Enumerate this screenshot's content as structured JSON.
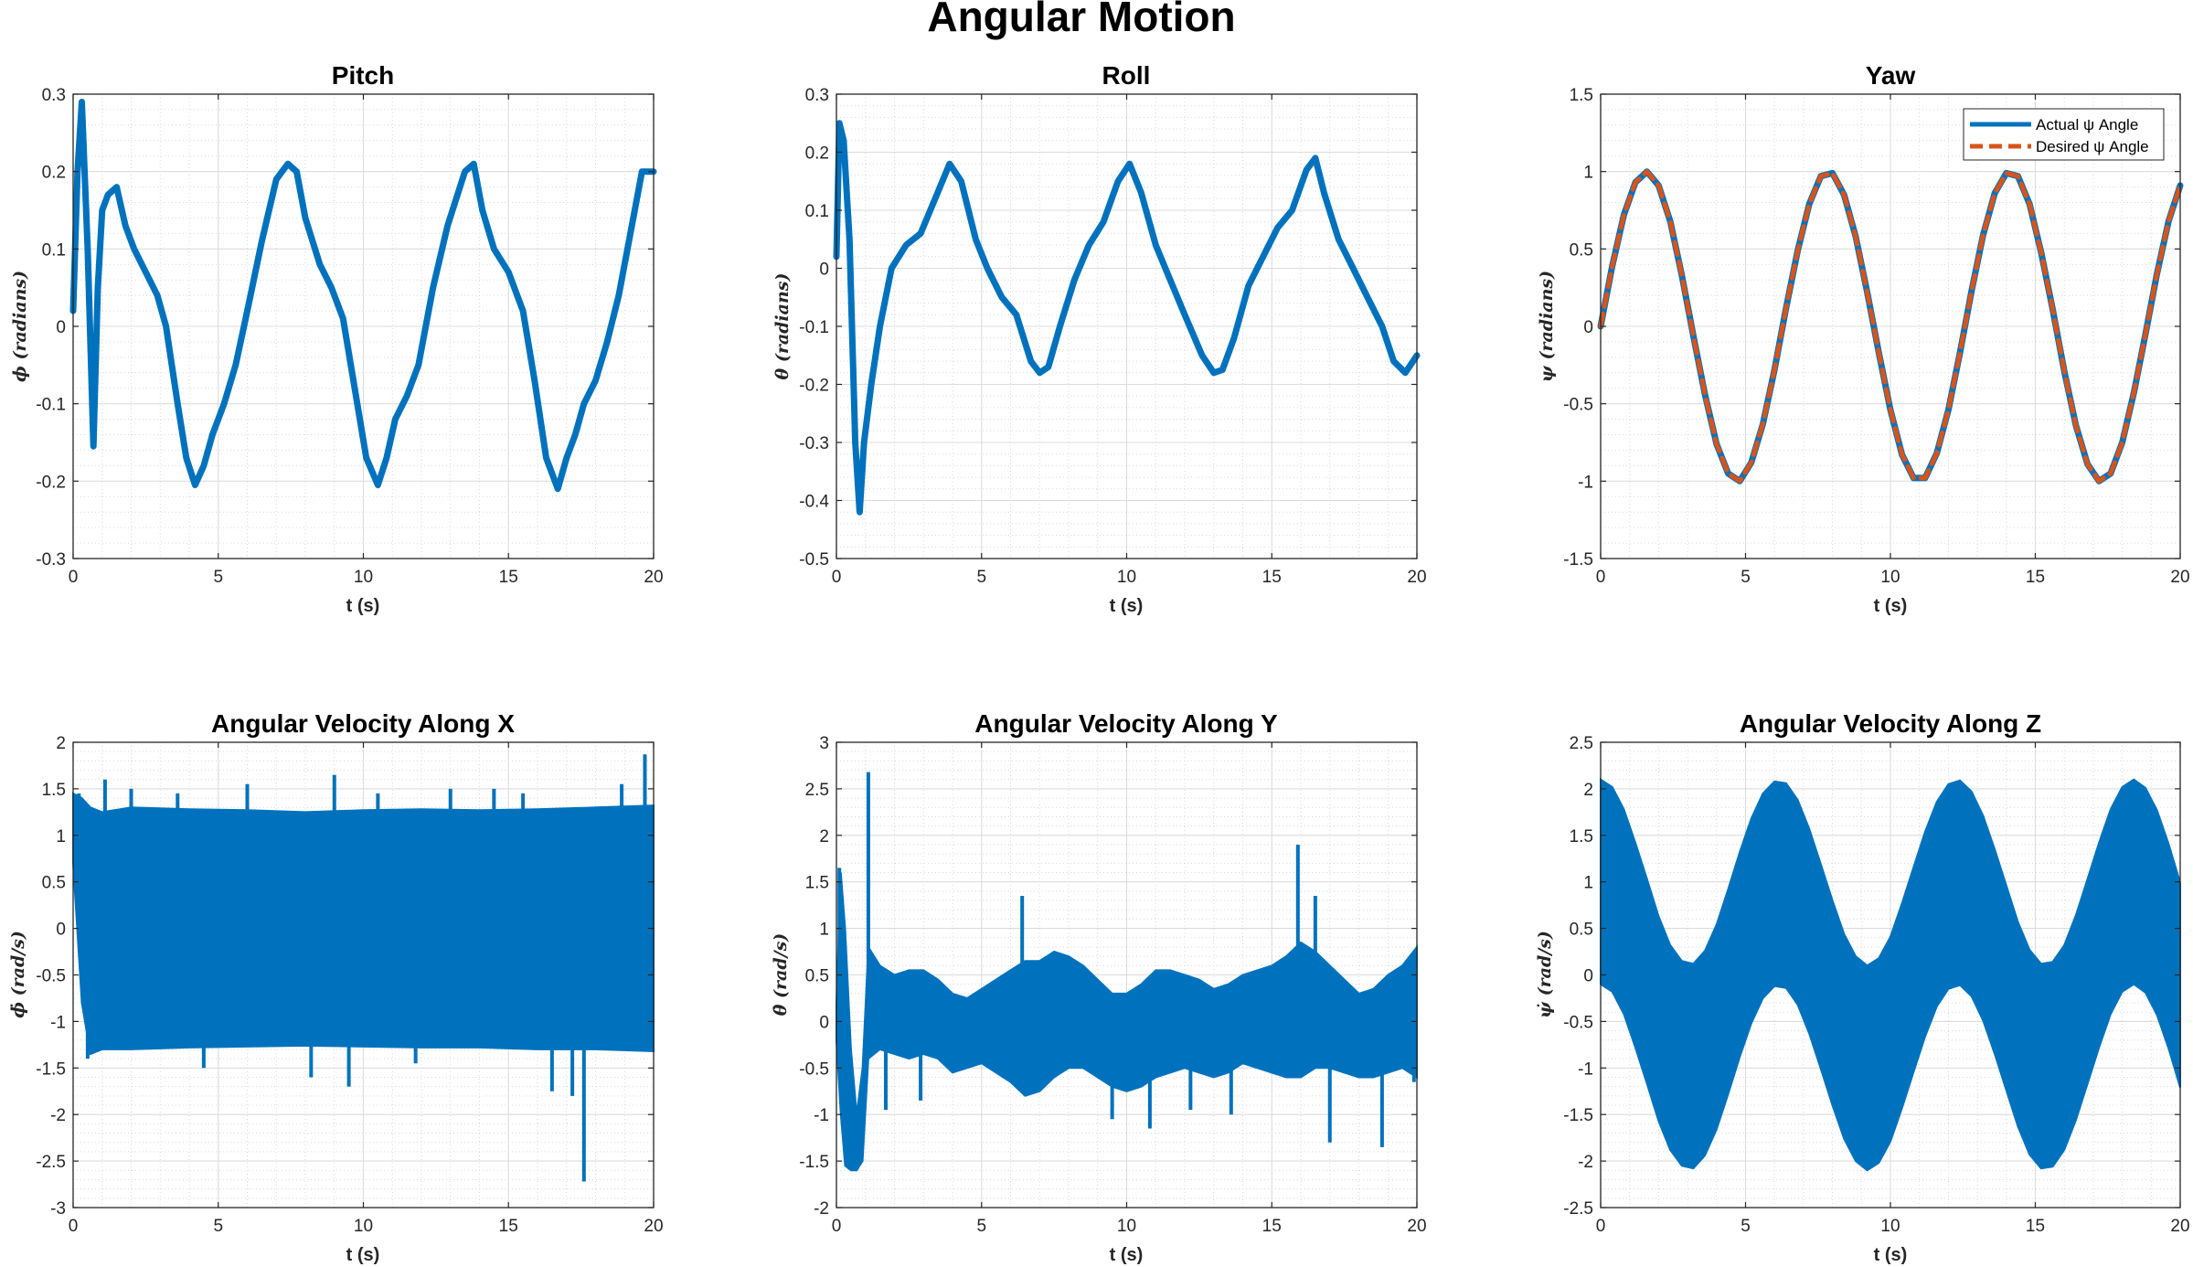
{
  "figure": {
    "title": "Angular Motion"
  },
  "chart_data": [
    {
      "type": "line",
      "title": "Pitch",
      "xlabel": "t (s)",
      "ylabel": "ϕ (radians)",
      "xlim": [
        0,
        20
      ],
      "ylim": [
        -0.3,
        0.3
      ],
      "xticks": [
        0,
        5,
        10,
        15,
        20
      ],
      "yticks": [
        -0.3,
        -0.2,
        -0.1,
        0,
        0.1,
        0.2,
        0.3
      ],
      "grid": true,
      "minor_grid": true,
      "series": [
        {
          "color": "#0072BD",
          "style": "solid",
          "x": [
            0,
            0.15,
            0.3,
            0.5,
            0.7,
            0.85,
            1.0,
            1.2,
            1.5,
            1.8,
            2.1,
            2.5,
            2.9,
            3.2,
            3.6,
            3.9,
            4.2,
            4.5,
            4.8,
            5.2,
            5.6,
            6.0,
            6.5,
            7.0,
            7.4,
            7.7,
            8.0,
            8.5,
            8.9,
            9.3,
            9.7,
            10.1,
            10.5,
            10.8,
            11.1,
            11.5,
            11.9,
            12.4,
            12.9,
            13.5,
            13.8,
            14.1,
            14.5,
            15.0,
            15.5,
            15.9,
            16.3,
            16.7,
            17.0,
            17.3,
            17.6,
            18.0,
            18.4,
            18.8,
            19.2,
            19.6,
            20.0
          ],
          "y": [
            0.02,
            0.2,
            0.29,
            0.1,
            -0.155,
            0.05,
            0.15,
            0.17,
            0.18,
            0.13,
            0.1,
            0.07,
            0.04,
            0.0,
            -0.1,
            -0.17,
            -0.205,
            -0.18,
            -0.14,
            -0.1,
            -0.05,
            0.02,
            0.11,
            0.19,
            0.21,
            0.2,
            0.14,
            0.08,
            0.05,
            0.01,
            -0.08,
            -0.17,
            -0.205,
            -0.17,
            -0.12,
            -0.09,
            -0.05,
            0.05,
            0.13,
            0.2,
            0.21,
            0.15,
            0.1,
            0.07,
            0.02,
            -0.07,
            -0.17,
            -0.21,
            -0.17,
            -0.14,
            -0.1,
            -0.07,
            -0.02,
            0.04,
            0.12,
            0.2,
            0.2
          ]
        }
      ]
    },
    {
      "type": "line",
      "title": "Roll",
      "xlabel": "t (s)",
      "ylabel": "θ (radians)",
      "xlim": [
        0,
        20
      ],
      "ylim": [
        -0.5,
        0.3
      ],
      "xticks": [
        0,
        5,
        10,
        15,
        20
      ],
      "yticks": [
        -0.5,
        -0.4,
        -0.3,
        -0.2,
        -0.1,
        0,
        0.1,
        0.2,
        0.3
      ],
      "grid": true,
      "minor_grid": true,
      "series": [
        {
          "color": "#0072BD",
          "style": "solid",
          "x": [
            0,
            0.1,
            0.25,
            0.45,
            0.65,
            0.8,
            0.95,
            1.2,
            1.5,
            1.9,
            2.4,
            2.9,
            3.4,
            3.9,
            4.3,
            4.8,
            5.2,
            5.7,
            6.2,
            6.7,
            7.0,
            7.3,
            7.7,
            8.2,
            8.7,
            9.2,
            9.7,
            10.1,
            10.5,
            11.0,
            11.5,
            12.0,
            12.6,
            13.0,
            13.3,
            13.7,
            14.2,
            14.7,
            15.2,
            15.7,
            16.2,
            16.5,
            16.8,
            17.3,
            17.8,
            18.3,
            18.8,
            19.2,
            19.6,
            20.0
          ],
          "y": [
            0.02,
            0.25,
            0.22,
            0.05,
            -0.3,
            -0.42,
            -0.3,
            -0.2,
            -0.1,
            0.0,
            0.04,
            0.06,
            0.12,
            0.18,
            0.15,
            0.05,
            0.0,
            -0.05,
            -0.08,
            -0.16,
            -0.18,
            -0.17,
            -0.1,
            -0.02,
            0.04,
            0.08,
            0.15,
            0.18,
            0.13,
            0.04,
            -0.02,
            -0.08,
            -0.15,
            -0.18,
            -0.175,
            -0.12,
            -0.03,
            0.02,
            0.07,
            0.1,
            0.17,
            0.19,
            0.13,
            0.05,
            0.0,
            -0.05,
            -0.1,
            -0.16,
            -0.18,
            -0.15
          ]
        }
      ]
    },
    {
      "type": "line",
      "title": "Yaw",
      "xlabel": "t (s)",
      "ylabel": "ψ (radians)",
      "xlim": [
        0,
        20
      ],
      "ylim": [
        -1.5,
        1.5
      ],
      "xticks": [
        0,
        5,
        10,
        15,
        20
      ],
      "yticks": [
        -1.5,
        -1,
        -0.5,
        0,
        0.5,
        1,
        1.5
      ],
      "grid": true,
      "minor_grid": true,
      "legend": {
        "position": "top-right"
      },
      "series": [
        {
          "name": "Actual ψ Angle",
          "color": "#0072BD",
          "style": "solid",
          "x": [
            0,
            0.4,
            0.8,
            1.2,
            1.6,
            2.0,
            2.4,
            2.8,
            3.2,
            3.6,
            4.0,
            4.4,
            4.8,
            5.2,
            5.6,
            6.0,
            6.4,
            6.8,
            7.2,
            7.6,
            8.0,
            8.4,
            8.8,
            9.2,
            9.6,
            10.0,
            10.4,
            10.8,
            11.2,
            11.6,
            12.0,
            12.4,
            12.8,
            13.2,
            13.6,
            14.0,
            14.4,
            14.8,
            15.2,
            15.6,
            16.0,
            16.4,
            16.8,
            17.2,
            17.6,
            18.0,
            18.4,
            18.8,
            19.2,
            19.6,
            20.0
          ],
          "y": [
            0,
            0.39,
            0.72,
            0.93,
            1.0,
            0.91,
            0.68,
            0.33,
            -0.06,
            -0.44,
            -0.76,
            -0.95,
            -1.0,
            -0.88,
            -0.63,
            -0.28,
            0.12,
            0.49,
            0.79,
            0.97,
            0.99,
            0.85,
            0.58,
            0.22,
            -0.17,
            -0.54,
            -0.83,
            -0.98,
            -0.98,
            -0.82,
            -0.54,
            -0.17,
            0.23,
            0.59,
            0.86,
            0.99,
            0.97,
            0.79,
            0.48,
            0.11,
            -0.29,
            -0.64,
            -0.89,
            -1.0,
            -0.95,
            -0.75,
            -0.43,
            -0.05,
            0.34,
            0.68,
            0.91
          ]
        },
        {
          "name": "Desired ψ Angle",
          "color": "#D95319",
          "style": "dashed",
          "x": [
            0,
            0.4,
            0.8,
            1.2,
            1.6,
            2.0,
            2.4,
            2.8,
            3.2,
            3.6,
            4.0,
            4.4,
            4.8,
            5.2,
            5.6,
            6.0,
            6.4,
            6.8,
            7.2,
            7.6,
            8.0,
            8.4,
            8.8,
            9.2,
            9.6,
            10.0,
            10.4,
            10.8,
            11.2,
            11.6,
            12.0,
            12.4,
            12.8,
            13.2,
            13.6,
            14.0,
            14.4,
            14.8,
            15.2,
            15.6,
            16.0,
            16.4,
            16.8,
            17.2,
            17.6,
            18.0,
            18.4,
            18.8,
            19.2,
            19.6,
            20.0
          ],
          "y": [
            0,
            0.39,
            0.72,
            0.93,
            1.0,
            0.91,
            0.68,
            0.33,
            -0.06,
            -0.44,
            -0.76,
            -0.95,
            -1.0,
            -0.88,
            -0.63,
            -0.28,
            0.12,
            0.49,
            0.79,
            0.97,
            0.99,
            0.85,
            0.58,
            0.22,
            -0.17,
            -0.54,
            -0.83,
            -0.98,
            -0.98,
            -0.82,
            -0.54,
            -0.17,
            0.23,
            0.59,
            0.86,
            0.99,
            0.97,
            0.79,
            0.48,
            0.11,
            -0.29,
            -0.64,
            -0.89,
            -1.0,
            -0.95,
            -0.75,
            -0.43,
            -0.05,
            0.34,
            0.68,
            0.91
          ]
        }
      ]
    },
    {
      "type": "area",
      "title": "Angular Velocity Along X",
      "xlabel": "t (s)",
      "ylabel": "ϕ̇ (rad/s)",
      "xlim": [
        0,
        20
      ],
      "ylim": [
        -3,
        2
      ],
      "xticks": [
        0,
        5,
        10,
        15,
        20
      ],
      "yticks": [
        -3,
        -2.5,
        -2,
        -1.5,
        -1,
        -0.5,
        0,
        0.5,
        1,
        1.5,
        2
      ],
      "grid": true,
      "minor_grid": true,
      "series": [
        {
          "color": "#0072BD",
          "x": [
            0,
            0.3,
            0.6,
            1.0,
            2,
            4,
            6,
            8,
            10,
            12,
            14,
            16,
            18,
            20
          ],
          "upper": [
            1.45,
            1.4,
            1.3,
            1.25,
            1.3,
            1.28,
            1.27,
            1.25,
            1.27,
            1.28,
            1.27,
            1.28,
            1.3,
            1.32
          ],
          "lower": [
            0.7,
            -0.8,
            -1.35,
            -1.3,
            -1.3,
            -1.28,
            -1.27,
            -1.26,
            -1.27,
            -1.28,
            -1.28,
            -1.3,
            -1.3,
            -1.32
          ]
        }
      ],
      "spikes": [
        {
          "x": 0.2,
          "y": 1.45
        },
        {
          "x": 0.5,
          "y": -1.4
        },
        {
          "x": 1.1,
          "y": 1.6
        },
        {
          "x": 2.0,
          "y": 1.5
        },
        {
          "x": 3.6,
          "y": 1.45
        },
        {
          "x": 6.0,
          "y": 1.55
        },
        {
          "x": 9.0,
          "y": 1.65
        },
        {
          "x": 9.5,
          "y": -1.7
        },
        {
          "x": 10.5,
          "y": 1.45
        },
        {
          "x": 13.0,
          "y": 1.5
        },
        {
          "x": 15.5,
          "y": 1.45
        },
        {
          "x": 16.5,
          "y": -1.75
        },
        {
          "x": 17.2,
          "y": -1.8
        },
        {
          "x": 17.6,
          "y": -2.72
        },
        {
          "x": 18.9,
          "y": 1.55
        },
        {
          "x": 19.7,
          "y": 1.87
        },
        {
          "x": 8.2,
          "y": -1.6
        },
        {
          "x": 14.5,
          "y": 1.5
        },
        {
          "x": 11.8,
          "y": -1.45
        },
        {
          "x": 4.5,
          "y": -1.5
        }
      ]
    },
    {
      "type": "area",
      "title": "Angular Velocity Along Y",
      "xlabel": "t (s)",
      "ylabel": "θ̇ (rad/s)",
      "xlim": [
        0,
        20
      ],
      "ylim": [
        -2,
        3
      ],
      "xticks": [
        0,
        5,
        10,
        15,
        20
      ],
      "yticks": [
        -2,
        -1.5,
        -1,
        -0.5,
        0,
        0.5,
        1,
        1.5,
        2,
        2.5,
        3
      ],
      "grid": true,
      "minor_grid": true,
      "series": [
        {
          "color": "#0072BD",
          "x": [
            0,
            0.15,
            0.3,
            0.5,
            0.7,
            0.9,
            1.1,
            1.5,
            2.0,
            2.5,
            3.0,
            3.5,
            4.0,
            4.5,
            5.0,
            5.5,
            6.0,
            6.5,
            7.0,
            7.5,
            8.0,
            8.5,
            9.0,
            9.5,
            10.0,
            10.5,
            11.0,
            11.5,
            12.0,
            12.5,
            13.0,
            13.5,
            14.0,
            14.5,
            15.0,
            15.5,
            16.0,
            16.5,
            17.0,
            17.5,
            18.0,
            18.5,
            19.0,
            19.5,
            20.0
          ],
          "upper": [
            0.2,
            1.6,
            1.0,
            -0.3,
            -1.0,
            -0.5,
            0.8,
            0.6,
            0.5,
            0.55,
            0.55,
            0.45,
            0.3,
            0.25,
            0.35,
            0.45,
            0.55,
            0.65,
            0.65,
            0.75,
            0.7,
            0.6,
            0.45,
            0.3,
            0.3,
            0.4,
            0.55,
            0.55,
            0.5,
            0.45,
            0.35,
            0.4,
            0.5,
            0.55,
            0.6,
            0.7,
            0.85,
            0.75,
            0.6,
            0.45,
            0.3,
            0.35,
            0.5,
            0.6,
            0.8
          ],
          "lower": [
            -0.2,
            -1.0,
            -1.55,
            -1.6,
            -1.6,
            -1.5,
            -0.4,
            -0.3,
            -0.35,
            -0.4,
            -0.35,
            -0.4,
            -0.55,
            -0.5,
            -0.45,
            -0.55,
            -0.65,
            -0.8,
            -0.75,
            -0.6,
            -0.5,
            -0.5,
            -0.6,
            -0.7,
            -0.75,
            -0.7,
            -0.6,
            -0.55,
            -0.5,
            -0.55,
            -0.6,
            -0.55,
            -0.45,
            -0.5,
            -0.55,
            -0.6,
            -0.6,
            -0.5,
            -0.5,
            -0.55,
            -0.6,
            -0.6,
            -0.55,
            -0.5,
            -0.6
          ]
        }
      ],
      "spikes": [
        {
          "x": 1.1,
          "y": 2.68
        },
        {
          "x": 0.1,
          "y": 1.65
        },
        {
          "x": 1.7,
          "y": -0.95
        },
        {
          "x": 6.4,
          "y": 1.35
        },
        {
          "x": 9.5,
          "y": -1.05
        },
        {
          "x": 10.8,
          "y": -1.15
        },
        {
          "x": 12.2,
          "y": -0.95
        },
        {
          "x": 13.6,
          "y": -1.0
        },
        {
          "x": 15.9,
          "y": 1.9
        },
        {
          "x": 16.5,
          "y": 1.35
        },
        {
          "x": 17.0,
          "y": -1.3
        },
        {
          "x": 18.8,
          "y": -1.35
        },
        {
          "x": 19.9,
          "y": -0.65
        },
        {
          "x": 2.9,
          "y": -0.85
        }
      ]
    },
    {
      "type": "area",
      "title": "Angular Velocity Along Z",
      "xlabel": "t (s)",
      "ylabel": "ψ̇ (rad/s)",
      "xlim": [
        0,
        20
      ],
      "ylim": [
        -2.5,
        2.5
      ],
      "xticks": [
        0,
        5,
        10,
        15,
        20
      ],
      "yticks": [
        -2.5,
        -2,
        -1.5,
        -1,
        -0.5,
        0,
        0.5,
        1,
        1.5,
        2,
        2.5
      ],
      "grid": true,
      "minor_grid": true,
      "series": [
        {
          "color": "#0072BD",
          "x": [
            0,
            0.4,
            0.8,
            1.2,
            1.6,
            2.0,
            2.4,
            2.8,
            3.2,
            3.6,
            4.0,
            4.4,
            4.8,
            5.2,
            5.6,
            6.0,
            6.4,
            6.8,
            7.2,
            7.6,
            8.0,
            8.4,
            8.8,
            9.2,
            9.6,
            10.0,
            10.4,
            10.8,
            11.2,
            11.6,
            12.0,
            12.4,
            12.8,
            13.2,
            13.6,
            14.0,
            14.4,
            14.8,
            15.2,
            15.6,
            16.0,
            16.4,
            16.8,
            17.2,
            17.6,
            18.0,
            18.4,
            18.8,
            19.2,
            19.6,
            20.0
          ],
          "upper": [
            2.1,
            2.02,
            1.78,
            1.42,
            1.03,
            0.63,
            0.32,
            0.15,
            0.12,
            0.26,
            0.54,
            0.92,
            1.32,
            1.68,
            1.95,
            2.08,
            2.06,
            1.88,
            1.57,
            1.19,
            0.8,
            0.44,
            0.2,
            0.1,
            0.18,
            0.41,
            0.77,
            1.16,
            1.54,
            1.86,
            2.05,
            2.09,
            1.97,
            1.71,
            1.35,
            0.96,
            0.57,
            0.27,
            0.12,
            0.14,
            0.32,
            0.64,
            1.03,
            1.42,
            1.78,
            2.02,
            2.1,
            2.01,
            1.77,
            1.41,
            0.99
          ],
          "lower": [
            -0.1,
            -0.18,
            -0.42,
            -0.78,
            -1.17,
            -1.57,
            -1.88,
            -2.05,
            -2.08,
            -1.94,
            -1.66,
            -1.28,
            -0.88,
            -0.52,
            -0.25,
            -0.12,
            -0.14,
            -0.32,
            -0.63,
            -1.01,
            -1.4,
            -1.76,
            -2.0,
            -2.1,
            -2.02,
            -1.79,
            -1.43,
            -1.04,
            -0.66,
            -0.34,
            -0.15,
            -0.11,
            -0.23,
            -0.49,
            -0.85,
            -1.24,
            -1.63,
            -1.93,
            -2.08,
            -2.06,
            -1.88,
            -1.56,
            -1.17,
            -0.78,
            -0.42,
            -0.18,
            -0.1,
            -0.19,
            -0.43,
            -0.79,
            -1.21
          ]
        }
      ]
    }
  ]
}
